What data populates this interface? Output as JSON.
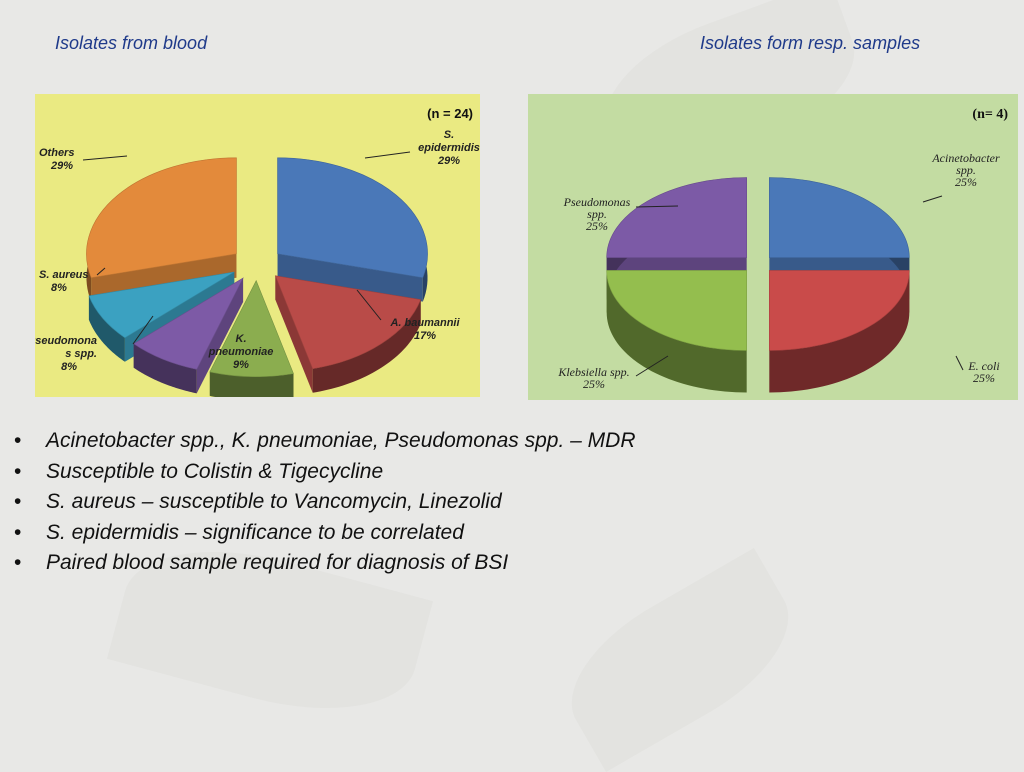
{
  "titles": {
    "left": "Isolates from blood",
    "right": "Isolates form resp. samples"
  },
  "chart_data": [
    {
      "type": "pie",
      "title": "Isolates from blood",
      "n_label": "(n = 24)",
      "style": "3d-exploded",
      "background": "#eaea82",
      "slices": [
        {
          "lines": [
            "S.",
            "epidermidis"
          ],
          "pct_label": "29%",
          "value": 29,
          "color": "#4a78b8"
        },
        {
          "lines": [
            "A. baumannii"
          ],
          "pct_label": "17%",
          "value": 17,
          "color": "#b94b48"
        },
        {
          "lines": [
            "K.",
            "pneumoniae"
          ],
          "pct_label": "9%",
          "value": 9,
          "color": "#8bad4f"
        },
        {
          "lines": [
            "Pseudomona",
            "s spp."
          ],
          "pct_label": "8%",
          "value": 8,
          "color": "#7d5aa6"
        },
        {
          "lines": [
            "S. aureus"
          ],
          "pct_label": "8%",
          "value": 8,
          "color": "#3ba1c1"
        },
        {
          "lines": [
            "Others"
          ],
          "pct_label": "29%",
          "value": 29,
          "color": "#e38a3b"
        }
      ]
    },
    {
      "type": "pie",
      "title": "Isolates form resp. samples",
      "n_label": "(n= 4)",
      "style": "3d-exploded",
      "background": "#c3dca2",
      "slices": [
        {
          "lines": [
            "Acinetobacter",
            "spp."
          ],
          "pct_label": "25%",
          "value": 25,
          "color": "#4a78b8"
        },
        {
          "lines": [
            "E. coli"
          ],
          "pct_label": "25%",
          "value": 25,
          "color": "#c94b4a"
        },
        {
          "lines": [
            "Klebsiella spp."
          ],
          "pct_label": "25%",
          "value": 25,
          "color": "#94be4e"
        },
        {
          "lines": [
            "Pseudomonas",
            "spp."
          ],
          "pct_label": "25%",
          "value": 25,
          "color": "#7c5aa6"
        }
      ]
    }
  ],
  "bullets": [
    "Acinetobacter spp., K. pneumoniae, Pseudomonas spp. – MDR",
    "Susceptible to Colistin & Tigecycline",
    "S. aureus – susceptible to Vancomycin, Linezolid",
    "S. epidermidis – significance to be correlated",
    "Paired blood sample required for diagnosis of BSI"
  ]
}
